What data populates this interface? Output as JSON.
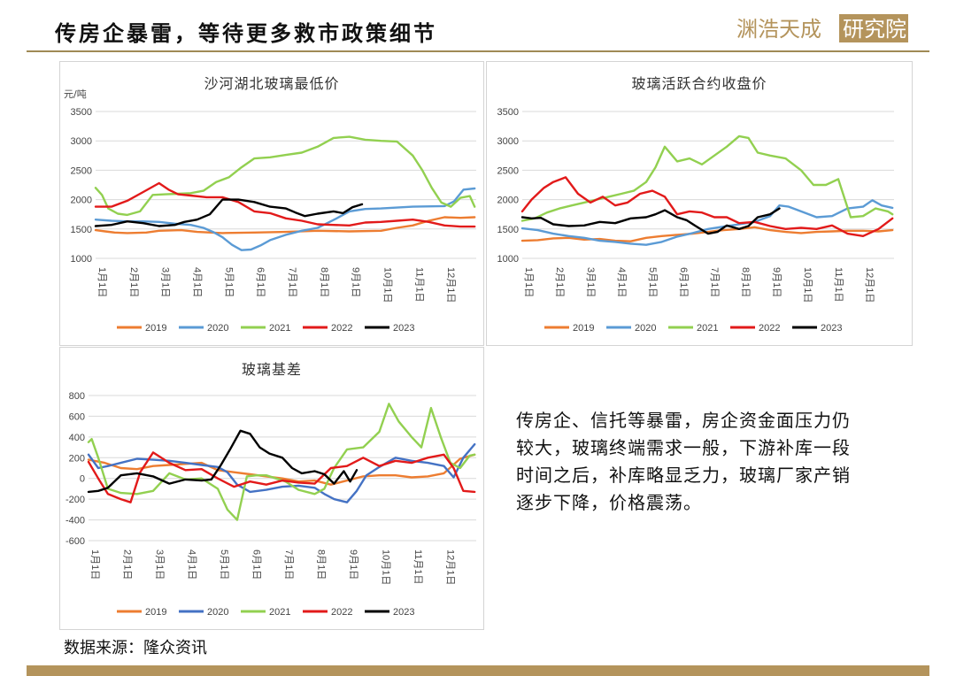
{
  "header": {
    "title": "传房企暴雷，等待更多救市政策细节",
    "logo_text": "渊浩天成研究院"
  },
  "colors": {
    "2019": "#ed7d31",
    "2020": "#5b9bd5",
    "2021": "#92d050",
    "2022": "#e21a1a",
    "2023": "#000000",
    "accent": "#a08a55"
  },
  "commentary": "传房企、信托等暴雷，房企资金面压力仍较大，玻璃终端需求一般，下游补库一段时间之后，补库略显乏力，玻璃厂家产销逐步下降，价格震荡。",
  "source": "数据来源：隆众资讯",
  "chart_data": [
    {
      "type": "line",
      "title": "沙河湖北玻璃最低价",
      "ylabel": "元/吨",
      "ylim": [
        1000,
        3500
      ],
      "yticks": [
        1000,
        1500,
        2000,
        2500,
        3000,
        3500
      ],
      "categories": [
        "1月1日",
        "2月1日",
        "3月1日",
        "4月1日",
        "5月1日",
        "6月1日",
        "7月1日",
        "8月1日",
        "9月1日",
        "10月1日",
        "11月1日",
        "12月1日"
      ],
      "grid": true,
      "legend": "bottom",
      "series": [
        {
          "name": "2019",
          "color": "#ed7d31",
          "x": [
            0,
            0.3,
            0.6,
            1,
            1.6,
            2,
            2.7,
            3.2,
            4,
            5,
            6,
            7,
            8,
            9,
            9.5,
            10,
            10.5,
            11,
            11.5,
            11.95
          ],
          "values": [
            1480,
            1460,
            1440,
            1430,
            1440,
            1470,
            1480,
            1450,
            1430,
            1440,
            1450,
            1470,
            1460,
            1470,
            1520,
            1560,
            1640,
            1700,
            1690,
            1700
          ]
        },
        {
          "name": "2020",
          "color": "#5b9bd5",
          "x": [
            0,
            0.5,
            1,
            1.5,
            2,
            2.5,
            3,
            3.4,
            3.7,
            4,
            4.3,
            4.6,
            4.9,
            5.2,
            5.5,
            6,
            6.5,
            7,
            7.3,
            7.6,
            8,
            8.5,
            9,
            10,
            11,
            11.3,
            11.6,
            11.95
          ],
          "values": [
            1660,
            1640,
            1630,
            1630,
            1620,
            1590,
            1570,
            1520,
            1450,
            1360,
            1230,
            1140,
            1150,
            1220,
            1310,
            1400,
            1470,
            1520,
            1600,
            1680,
            1800,
            1840,
            1850,
            1880,
            1890,
            1970,
            2170,
            2190
          ]
        },
        {
          "name": "2021",
          "color": "#92d050",
          "x": [
            0,
            0.2,
            0.4,
            0.7,
            1,
            1.4,
            1.8,
            2.2,
            2.6,
            3,
            3.4,
            3.8,
            4.2,
            4.6,
            5,
            5.5,
            6,
            6.5,
            7,
            7.5,
            8,
            8.5,
            9,
            9.5,
            10,
            10.3,
            10.6,
            10.9,
            11.2,
            11.5,
            11.8,
            11.95
          ],
          "values": [
            2200,
            2080,
            1850,
            1760,
            1740,
            1800,
            2080,
            2090,
            2100,
            2110,
            2150,
            2300,
            2380,
            2550,
            2700,
            2720,
            2760,
            2800,
            2900,
            3050,
            3070,
            3020,
            3000,
            2990,
            2750,
            2500,
            2200,
            1950,
            1880,
            2030,
            2060,
            1880
          ]
        },
        {
          "name": "2022",
          "color": "#e21a1a",
          "x": [
            0,
            0.5,
            1,
            1.5,
            2,
            2.3,
            2.6,
            3,
            3.5,
            4,
            4.5,
            5,
            5.5,
            6,
            6.5,
            7,
            7.5,
            8,
            8.5,
            9,
            9.5,
            10,
            10.5,
            11,
            11.5,
            11.95
          ],
          "values": [
            1880,
            1880,
            1980,
            2130,
            2280,
            2170,
            2090,
            2070,
            2040,
            2040,
            1960,
            1800,
            1770,
            1680,
            1640,
            1580,
            1570,
            1560,
            1610,
            1620,
            1640,
            1660,
            1620,
            1560,
            1540,
            1540
          ]
        },
        {
          "name": "2023",
          "color": "#000000",
          "x": [
            0,
            0.5,
            1,
            1.5,
            2,
            2.5,
            2.8,
            3.2,
            3.6,
            4,
            4.5,
            5,
            5.5,
            6,
            6.3,
            6.6,
            7,
            7.5,
            7.8,
            8.1,
            8.4
          ],
          "values": [
            1550,
            1570,
            1630,
            1600,
            1550,
            1570,
            1620,
            1660,
            1750,
            2000,
            2000,
            1960,
            1880,
            1850,
            1780,
            1720,
            1760,
            1800,
            1770,
            1870,
            1920
          ]
        }
      ]
    },
    {
      "type": "line",
      "title": "玻璃活跃合约收盘价",
      "ylim": [
        1000,
        3500
      ],
      "yticks": [
        1000,
        1500,
        2000,
        2500,
        3000,
        3500
      ],
      "categories": [
        "1月1日",
        "2月1日",
        "3月1日",
        "4月1日",
        "5月1日",
        "6月1日",
        "7月1日",
        "8月1日",
        "9月1日",
        "10月1日",
        "11月1日",
        "12月1日"
      ],
      "grid": true,
      "legend": "bottom",
      "series": [
        {
          "name": "2019",
          "color": "#ed7d31",
          "x": [
            0,
            0.5,
            1,
            1.5,
            2,
            2.5,
            3,
            3.5,
            4,
            4.5,
            5,
            5.5,
            6,
            6.5,
            7,
            7.5,
            8,
            8.5,
            9,
            9.5,
            10,
            10.5,
            11,
            11.5,
            11.95
          ],
          "values": [
            1300,
            1310,
            1340,
            1350,
            1320,
            1330,
            1300,
            1290,
            1350,
            1380,
            1400,
            1420,
            1450,
            1480,
            1500,
            1530,
            1480,
            1450,
            1430,
            1450,
            1460,
            1470,
            1470,
            1460,
            1480
          ]
        },
        {
          "name": "2020",
          "color": "#5b9bd5",
          "x": [
            0,
            0.5,
            1,
            1.5,
            2,
            2.5,
            3,
            3.5,
            4,
            4.5,
            5,
            5.5,
            6,
            6.5,
            7,
            7.5,
            8,
            8.3,
            8.6,
            9,
            9.5,
            10,
            10.5,
            11,
            11.3,
            11.6,
            11.95
          ],
          "values": [
            1510,
            1480,
            1420,
            1380,
            1350,
            1300,
            1280,
            1250,
            1230,
            1280,
            1370,
            1430,
            1500,
            1540,
            1580,
            1620,
            1720,
            1900,
            1880,
            1800,
            1700,
            1720,
            1850,
            1880,
            1990,
            1900,
            1860
          ]
        },
        {
          "name": "2021",
          "color": "#92d050",
          "x": [
            0,
            0.4,
            0.8,
            1.2,
            1.6,
            2,
            2.4,
            2.8,
            3.2,
            3.6,
            4,
            4.3,
            4.6,
            5,
            5.4,
            5.8,
            6.2,
            6.6,
            7,
            7.3,
            7.6,
            8,
            8.5,
            9,
            9.4,
            9.8,
            10.2,
            10.6,
            11,
            11.4,
            11.8,
            11.95
          ],
          "values": [
            1640,
            1680,
            1780,
            1850,
            1900,
            1950,
            2000,
            2050,
            2100,
            2150,
            2300,
            2550,
            2900,
            2650,
            2700,
            2600,
            2750,
            2900,
            3080,
            3050,
            2800,
            2750,
            2700,
            2500,
            2250,
            2250,
            2350,
            1700,
            1720,
            1850,
            1800,
            1750
          ]
        },
        {
          "name": "2022",
          "color": "#e21a1a",
          "x": [
            0,
            0.3,
            0.7,
            1,
            1.4,
            1.8,
            2.2,
            2.6,
            3,
            3.4,
            3.8,
            4.2,
            4.6,
            5,
            5.4,
            5.8,
            6.2,
            6.6,
            7,
            7.5,
            8,
            8.5,
            9,
            9.5,
            10,
            10.5,
            11,
            11.5,
            11.95
          ],
          "values": [
            1800,
            2000,
            2200,
            2300,
            2380,
            2100,
            1950,
            2050,
            1900,
            1950,
            2100,
            2150,
            2050,
            1750,
            1800,
            1780,
            1700,
            1700,
            1600,
            1620,
            1550,
            1500,
            1520,
            1500,
            1560,
            1420,
            1380,
            1500,
            1680
          ]
        },
        {
          "name": "2023",
          "color": "#000000",
          "x": [
            0,
            0.3,
            0.6,
            1,
            1.5,
            2,
            2.5,
            3,
            3.5,
            4,
            4.3,
            4.6,
            5,
            5.3,
            5.6,
            6,
            6.3,
            6.6,
            7,
            7.3,
            7.6,
            8,
            8.3
          ],
          "values": [
            1700,
            1680,
            1690,
            1580,
            1550,
            1560,
            1620,
            1600,
            1680,
            1700,
            1750,
            1820,
            1700,
            1650,
            1550,
            1420,
            1450,
            1560,
            1500,
            1550,
            1700,
            1750,
            1850
          ]
        }
      ]
    },
    {
      "type": "line",
      "title": "玻璃基差",
      "ylim": [
        -600,
        800
      ],
      "yticks": [
        -600,
        -400,
        -200,
        0,
        200,
        400,
        600,
        800
      ],
      "categories": [
        "1月1日",
        "2月1日",
        "3月1日",
        "4月1日",
        "5月1日",
        "6月1日",
        "7月1日",
        "8月1日",
        "9月1日",
        "10月1日",
        "11月1日",
        "12月1日"
      ],
      "grid": true,
      "legend": "bottom",
      "series": [
        {
          "name": "2019",
          "color": "#ed7d31",
          "x": [
            0,
            0.5,
            1,
            1.5,
            2,
            2.5,
            3,
            3.5,
            4,
            4.5,
            5,
            5.5,
            6,
            6.5,
            7,
            7.5,
            8,
            8.5,
            9,
            9.5,
            10,
            10.5,
            11,
            11.5,
            11.95
          ],
          "values": [
            180,
            150,
            100,
            90,
            120,
            130,
            140,
            150,
            80,
            60,
            40,
            20,
            0,
            -30,
            -20,
            -60,
            -20,
            20,
            30,
            30,
            10,
            20,
            50,
            190,
            230
          ]
        },
        {
          "name": "2020",
          "color": "#4472c4",
          "x": [
            0,
            0.3,
            0.6,
            1,
            1.5,
            2,
            2.5,
            3,
            3.5,
            4,
            4.3,
            4.6,
            5,
            5.5,
            6,
            6.5,
            7,
            7.3,
            7.6,
            8,
            8.3,
            8.6,
            9,
            9.5,
            10,
            10.5,
            11,
            11.3,
            11.6,
            11.95
          ],
          "values": [
            230,
            100,
            120,
            150,
            190,
            180,
            170,
            150,
            130,
            110,
            60,
            -60,
            -130,
            -110,
            -80,
            -70,
            -90,
            -150,
            -200,
            -230,
            -120,
            30,
            110,
            200,
            170,
            150,
            120,
            10,
            200,
            330
          ]
        },
        {
          "name": "2021",
          "color": "#92d050",
          "x": [
            0,
            0.1,
            0.3,
            0.6,
            1,
            1.5,
            2,
            2.5,
            3,
            3.5,
            4,
            4.3,
            4.6,
            4.9,
            5.2,
            5.5,
            5.8,
            6.1,
            6.5,
            7,
            7.3,
            7.6,
            8,
            8.5,
            9,
            9.3,
            9.6,
            10,
            10.3,
            10.6,
            10.9,
            11.2,
            11.5,
            11.8,
            11.95
          ],
          "values": [
            350,
            380,
            200,
            -100,
            -140,
            -150,
            -120,
            50,
            -10,
            0,
            -100,
            -300,
            -400,
            20,
            30,
            30,
            0,
            -30,
            -110,
            -150,
            -100,
            100,
            280,
            300,
            450,
            720,
            550,
            400,
            300,
            680,
            400,
            150,
            100,
            220,
            230
          ]
        },
        {
          "name": "2022",
          "color": "#e21a1a",
          "x": [
            0,
            0.3,
            0.6,
            1,
            1.3,
            1.6,
            2,
            2.5,
            3,
            3.5,
            4,
            4.5,
            5,
            5.5,
            6,
            6.5,
            7,
            7.5,
            8,
            8.5,
            9,
            9.5,
            10,
            10.5,
            11,
            11.3,
            11.6,
            11.95
          ],
          "values": [
            160,
            0,
            -150,
            -200,
            -230,
            60,
            250,
            150,
            80,
            90,
            0,
            -80,
            -30,
            -60,
            -20,
            -40,
            -50,
            100,
            120,
            200,
            120,
            170,
            150,
            200,
            230,
            100,
            -120,
            -130
          ]
        },
        {
          "name": "2023",
          "color": "#000000",
          "x": [
            0,
            0.3,
            0.6,
            1,
            1.5,
            2,
            2.5,
            3,
            3.5,
            3.8,
            4.1,
            4.4,
            4.7,
            5,
            5.3,
            5.6,
            6,
            6.3,
            6.6,
            7,
            7.3,
            7.6,
            7.9,
            8.1,
            8.3
          ],
          "values": [
            -130,
            -120,
            -90,
            30,
            50,
            20,
            -50,
            -10,
            -20,
            -10,
            130,
            290,
            460,
            430,
            300,
            240,
            200,
            100,
            50,
            70,
            40,
            -50,
            70,
            -30,
            80
          ]
        }
      ]
    }
  ]
}
